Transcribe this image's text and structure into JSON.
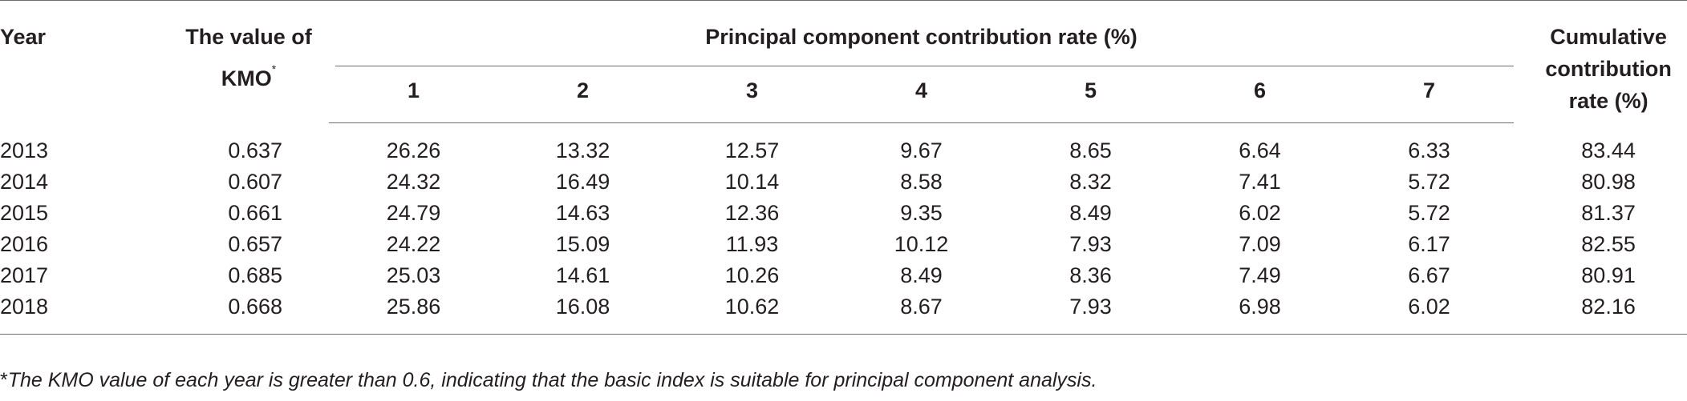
{
  "table": {
    "headers": {
      "year": "Year",
      "kmo_line1": "The value of",
      "kmo_line2": "KMO",
      "kmo_mark": "*",
      "group": "Principal component contribution rate (%)",
      "components": [
        "1",
        "2",
        "3",
        "4",
        "5",
        "6",
        "7"
      ],
      "cumulative_line1": "Cumulative",
      "cumulative_line2": "contribution",
      "cumulative_line3": "rate (%)"
    },
    "rows": [
      {
        "year": "2013",
        "kmo": "0.637",
        "pc": [
          "26.26",
          "13.32",
          "12.57",
          "9.67",
          "8.65",
          "6.64",
          "6.33"
        ],
        "cumulative": "83.44"
      },
      {
        "year": "2014",
        "kmo": "0.607",
        "pc": [
          "24.32",
          "16.49",
          "10.14",
          "8.58",
          "8.32",
          "7.41",
          "5.72"
        ],
        "cumulative": "80.98"
      },
      {
        "year": "2015",
        "kmo": "0.661",
        "pc": [
          "24.79",
          "14.63",
          "12.36",
          "9.35",
          "8.49",
          "6.02",
          "5.72"
        ],
        "cumulative": "81.37"
      },
      {
        "year": "2016",
        "kmo": "0.657",
        "pc": [
          "24.22",
          "15.09",
          "11.93",
          "10.12",
          "7.93",
          "7.09",
          "6.17"
        ],
        "cumulative": "82.55"
      },
      {
        "year": "2017",
        "kmo": "0.685",
        "pc": [
          "25.03",
          "14.61",
          "10.26",
          "8.49",
          "8.36",
          "7.49",
          "6.67"
        ],
        "cumulative": "80.91"
      },
      {
        "year": "2018",
        "kmo": "0.668",
        "pc": [
          "25.86",
          "16.08",
          "10.62",
          "8.67",
          "7.93",
          "6.98",
          "6.02"
        ],
        "cumulative": "82.16"
      }
    ]
  },
  "footnote": {
    "mark": "*",
    "text": "The KMO value of each year is greater than 0.6, indicating that the basic index is suitable for principal component analysis."
  }
}
